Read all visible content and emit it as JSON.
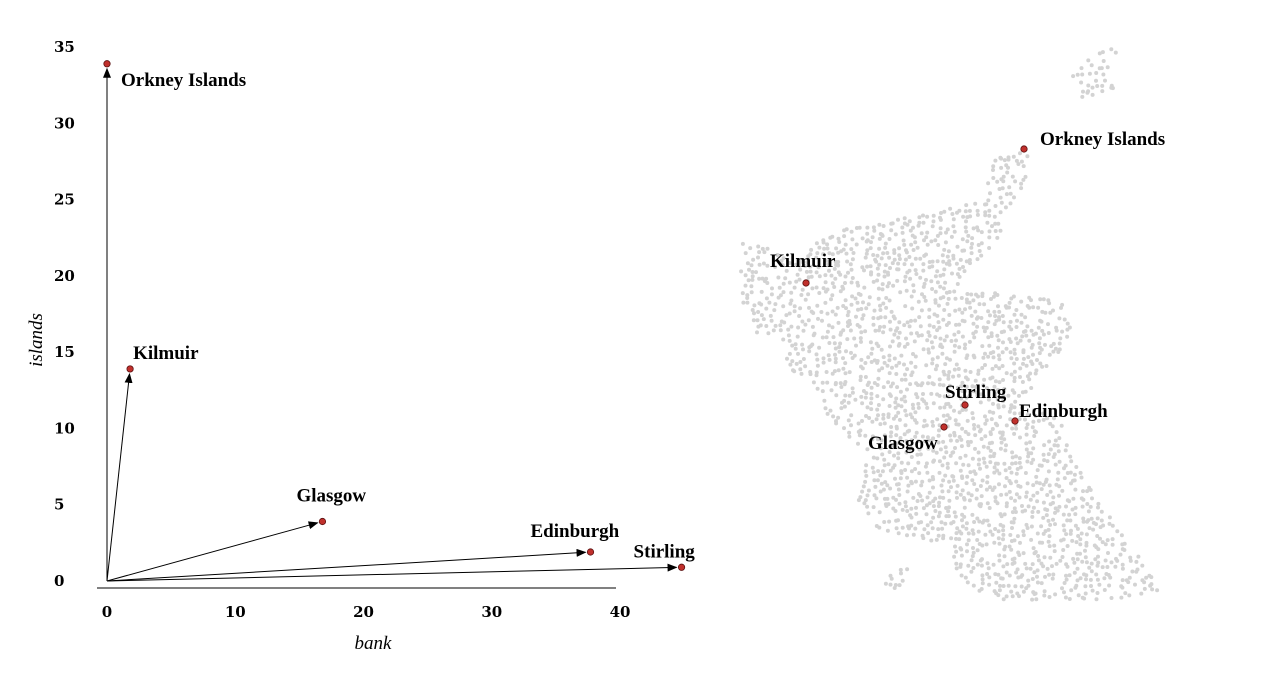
{
  "chart_data": {
    "type": "scatter",
    "x_label": "bank",
    "y_label": "islands",
    "labels": [
      "Orkney Islands",
      "Kilmuir",
      "Glasgow",
      "Edinburgh",
      "Stirling"
    ],
    "x": [
      0,
      1.8,
      16.8,
      37.7,
      44.8
    ],
    "values": [
      33.9,
      13.9,
      3.9,
      1.9,
      0.9
    ],
    "color": "#c0302c",
    "xlim": [
      0,
      40
    ],
    "ylim": [
      0,
      35
    ],
    "xticks": [
      0,
      10,
      20,
      30,
      40
    ],
    "yticks": [
      0,
      5,
      10,
      15,
      20,
      25,
      30,
      35
    ]
  }
}
